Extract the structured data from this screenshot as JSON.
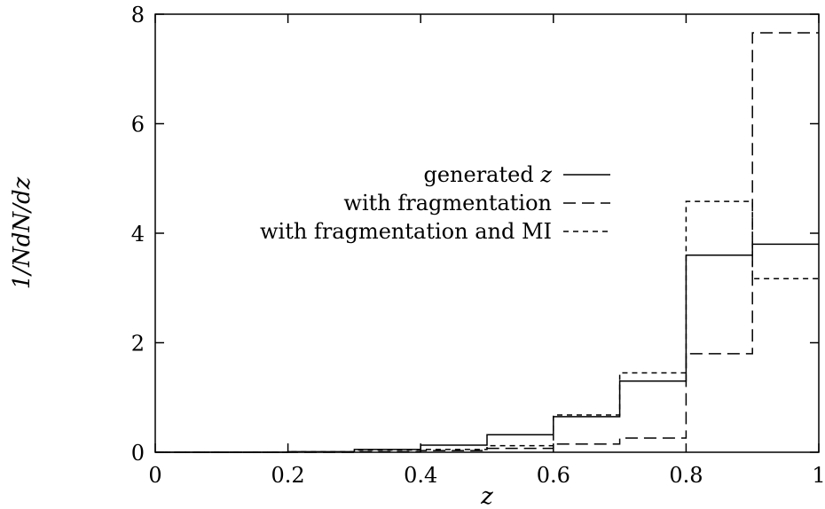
{
  "chart_data": {
    "type": "line",
    "step": true,
    "xlabel": "z",
    "ylabel": "1/NdN/dz",
    "xlim": [
      0,
      1
    ],
    "ylim": [
      0,
      8
    ],
    "x_ticks": [
      {
        "value": 0,
        "label": "0"
      },
      {
        "value": 0.2,
        "label": "0.2"
      },
      {
        "value": 0.4,
        "label": "0.4"
      },
      {
        "value": 0.6,
        "label": "0.6"
      },
      {
        "value": 0.8,
        "label": "0.8"
      },
      {
        "value": 1,
        "label": "1"
      }
    ],
    "y_ticks": [
      {
        "value": 0,
        "label": "0"
      },
      {
        "value": 2,
        "label": "2"
      },
      {
        "value": 4,
        "label": "4"
      },
      {
        "value": 6,
        "label": "6"
      },
      {
        "value": 8,
        "label": "8"
      }
    ],
    "bin_edges": [
      0,
      0.1,
      0.2,
      0.3,
      0.4,
      0.5,
      0.6,
      0.7,
      0.8,
      0.9,
      1.0
    ],
    "legend_position": "center",
    "grid": false,
    "series": [
      {
        "name_prefix": "generated",
        "name_var": "z",
        "dash": "solid",
        "values": [
          0.0,
          0.0,
          0.01,
          0.05,
          0.13,
          0.32,
          0.65,
          1.3,
          3.6,
          3.8
        ]
      },
      {
        "name": "with fragmentation",
        "dash": "long",
        "values": [
          0.0,
          0.0,
          0.0,
          0.01,
          0.03,
          0.07,
          0.15,
          0.26,
          1.8,
          7.66
        ]
      },
      {
        "name": "with fragmentation and MI",
        "dash": "short",
        "values": [
          0.0,
          0.0,
          0.01,
          0.04,
          0.05,
          0.12,
          0.68,
          1.45,
          4.58,
          3.17
        ]
      }
    ]
  }
}
